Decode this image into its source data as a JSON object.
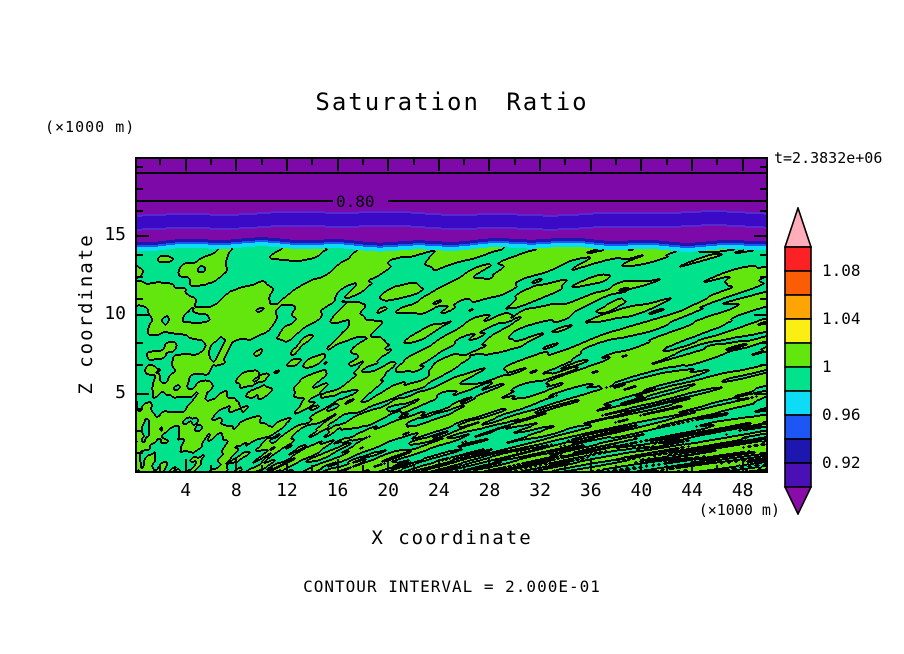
{
  "figure": {
    "title": "Saturation Ratio",
    "time_label": "t=2.3832e+06",
    "contour_note": "CONTOUR INTERVAL = 2.000E-01",
    "contour_line_label": "0.80",
    "x_axis": {
      "label": "X coordinate",
      "unit": "(×1000 m)"
    },
    "y_axis": {
      "label": "Z coordinate",
      "unit": "(×1000 m)"
    }
  },
  "chart_data": {
    "type": "heatmap",
    "subtype": "filled-contour",
    "title": "Saturation Ratio",
    "xlabel": "X coordinate",
    "ylabel": "Z coordinate",
    "x_unit": "(×1000 m)",
    "y_unit": "(×1000 m)",
    "x_range": [
      0,
      50
    ],
    "y_range": [
      0,
      20
    ],
    "x_ticks": [
      4,
      8,
      12,
      16,
      20,
      24,
      28,
      32,
      36,
      40,
      44,
      48
    ],
    "y_ticks": [
      5,
      10,
      15
    ],
    "time_annotation": "t=2.3832e+06",
    "contour_interval": "2.000E-01",
    "labeled_contour_value": "0.80",
    "field_structure": [
      {
        "region": "upper layer",
        "z_range": [
          14.7,
          20
        ],
        "value": "≈0.80–0.92",
        "fill": "purple",
        "notes": "uniform subsaturated layer; two horizontal 0.80 contour lines near z≈19 and z≈17.3; dark indigo band (≈0.90–0.92) near z≈16"
      },
      {
        "region": "interface",
        "z_range": [
          14.4,
          14.7
        ],
        "value": "0.92–0.98",
        "fill": "navy/blue/cyan thin bands",
        "notes": "sharp transition at mixed-layer top"
      },
      {
        "region": "mixed layer",
        "z_range": [
          0,
          14.4
        ],
        "value": "0.98–1.02",
        "fill": "two-tone green",
        "notes": "turbulent field oscillating about saturation ratio 1; broad blobs near the interface grading into fine vertical fingers near the bottom; black lines are the 1.0 contour; sparse yellow specks (>1.02) at the very bottom"
      }
    ],
    "colorbar": {
      "orientation": "vertical",
      "position": "right",
      "segment_step": 0.02,
      "segments": [
        {
          "value_range": "> 1.10",
          "color": "#FFAEB9",
          "shape": "arrow-up"
        },
        {
          "value_range": "1.08 - 1.10",
          "color": "#FB2125"
        },
        {
          "value_range": "1.06 - 1.08",
          "color": "#FB5D05"
        },
        {
          "value_range": "1.04 - 1.06",
          "color": "#FFA405"
        },
        {
          "value_range": "1.02 - 1.04",
          "color": "#FBEE12"
        },
        {
          "value_range": "1.00 - 1.02",
          "color": "#63E60E"
        },
        {
          "value_range": "0.98 - 1.00",
          "color": "#00E28C"
        },
        {
          "value_range": "0.96 - 0.98",
          "color": "#0CDCF5"
        },
        {
          "value_range": "0.94 - 0.96",
          "color": "#1E55F5"
        },
        {
          "value_range": "0.92 - 0.94",
          "color": "#1D17B0"
        },
        {
          "value_range": "0.90 - 0.92",
          "color": "#4A10B5"
        },
        {
          "value_range": "< 0.90",
          "color": "#8A0CA8",
          "shape": "arrow-down"
        }
      ],
      "tick_labels": [
        {
          "text": "1.08",
          "boundary_index": 1
        },
        {
          "text": "1.04",
          "boundary_index": 3
        },
        {
          "text": "1",
          "boundary_index": 5
        },
        {
          "text": "0.96",
          "boundary_index": 7
        },
        {
          "text": "0.92",
          "boundary_index": 9
        }
      ]
    }
  },
  "colors": {
    "background": "#ffffff",
    "axis": "#000000",
    "purple": "#7D0AA8",
    "indigo_band_core": "#3A0AC6",
    "indigo_band_fringe": "#5629D1",
    "navy": "#1D17B0",
    "blue": "#1E55F5",
    "cyan": "#0CDCF5",
    "spring_green": "#00E28C",
    "bright_green": "#63E60E",
    "yellow": "#FBEE12",
    "contour_line": "#000000"
  }
}
